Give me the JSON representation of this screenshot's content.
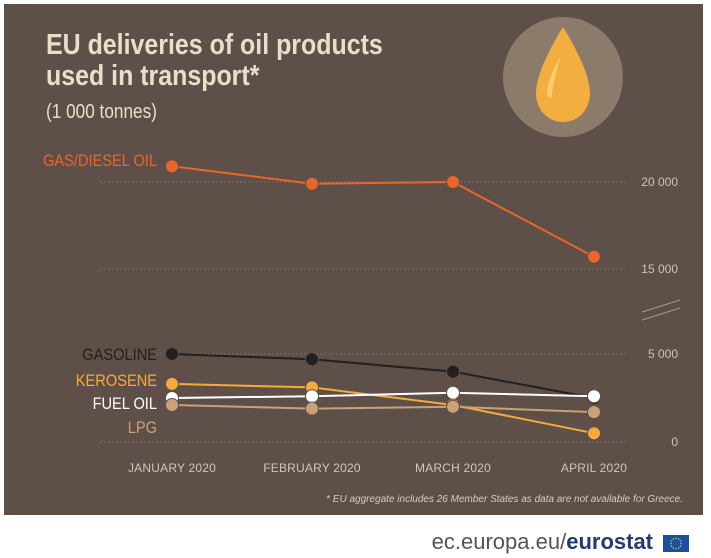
{
  "title": "EU deliveries of oil products used in transport*",
  "subtitle": "(1 000 tonnes)",
  "footnote": "* EU aggregate includes 26 Member States as data are not available for Greece.",
  "footer": {
    "prefix": "ec.europa.eu/",
    "brand": "eurostat"
  },
  "icons": {
    "drop": "oil-drop-icon",
    "flag": "eu-flag-icon"
  },
  "chart_data": {
    "type": "line",
    "categories": [
      "JANUARY 2020",
      "FEBRUARY 2020",
      "MARCH 2020",
      "APRIL 2020"
    ],
    "y_ticks": [
      "0",
      "5 000",
      "15 000",
      "20 000"
    ],
    "axis_break": "between 5 000 and 15 000",
    "grid": true,
    "series": [
      {
        "name": "GAS/DIESEL OIL",
        "color": "#e8662a",
        "values": [
          20900,
          19900,
          20000,
          15700
        ]
      },
      {
        "name": "GASOLINE",
        "color": "#231f20",
        "values": [
          5000,
          4700,
          4000,
          2500
        ]
      },
      {
        "name": "KEROSENE",
        "color": "#f4ab3b",
        "values": [
          3300,
          3100,
          2100,
          500
        ]
      },
      {
        "name": "FUEL OIL",
        "color": "#ffffff",
        "values": [
          2500,
          2600,
          2800,
          2600
        ]
      },
      {
        "name": "LPG",
        "color": "#c9a27a",
        "values": [
          2100,
          1900,
          2000,
          1700
        ]
      }
    ]
  }
}
